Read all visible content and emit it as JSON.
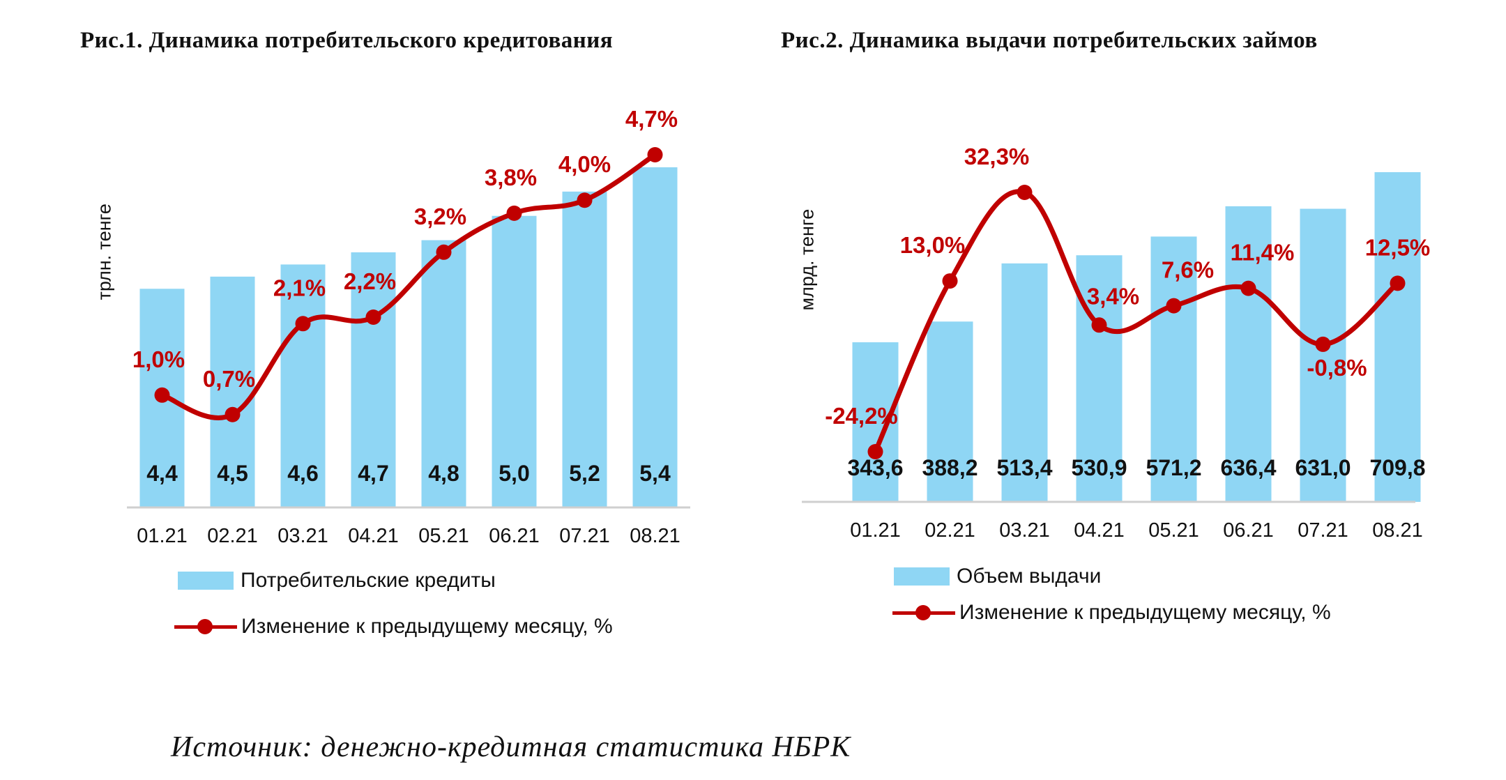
{
  "colors": {
    "bar": "#8fd6f4",
    "line": "#c00000",
    "axis": "#cfcfcf",
    "text": "#111111"
  },
  "source": "Источник: денежно-кредитная статистика НБРК",
  "chart_data": [
    {
      "type": "bar",
      "title": "Рис.1. Динамика потребительского кредитования",
      "ylabel": "трлн. тенге",
      "categories": [
        "01.21",
        "02.21",
        "03.21",
        "04.21",
        "05.21",
        "06.21",
        "07.21",
        "08.21"
      ],
      "series": [
        {
          "name": "Потребительские кредиты",
          "type": "bar",
          "values": [
            4.4,
            4.5,
            4.6,
            4.7,
            4.8,
            5.0,
            5.2,
            5.4
          ],
          "labels": [
            "4,4",
            "4,5",
            "4,6",
            "4,7",
            "4,8",
            "5,0",
            "5,2",
            "5,4"
          ]
        },
        {
          "name": "Изменение к предыдущему месяцу, %",
          "type": "line",
          "values": [
            1.0,
            0.7,
            2.1,
            2.2,
            3.2,
            3.8,
            4.0,
            4.7
          ],
          "labels": [
            "1,0%",
            "0,7%",
            "2,1%",
            "2,2%",
            "3,2%",
            "3,8%",
            "4,0%",
            "4,7%"
          ]
        }
      ],
      "grid": false,
      "legend_position": "bottom"
    },
    {
      "type": "bar",
      "title": "Рис.2. Динамика выдачи потребительских займов",
      "ylabel": "млрд. тенге",
      "categories": [
        "01.21",
        "02.21",
        "03.21",
        "04.21",
        "05.21",
        "06.21",
        "07.21",
        "08.21"
      ],
      "series": [
        {
          "name": "Объем выдачи",
          "type": "bar",
          "values": [
            343.6,
            388.2,
            513.4,
            530.9,
            571.2,
            636.4,
            631.0,
            709.8
          ],
          "labels": [
            "343,6",
            "388,2",
            "513,4",
            "530,9",
            "571,2",
            "636,4",
            "631,0",
            "709,8"
          ]
        },
        {
          "name": "Изменение к предыдущему месяцу, %",
          "type": "line",
          "values": [
            -24.2,
            13.0,
            32.3,
            3.4,
            7.6,
            11.4,
            -0.8,
            12.5
          ],
          "labels": [
            "-24,2%",
            "13,0%",
            "32,3%",
            "3,4%",
            "7,6%",
            "11,4%",
            "-0,8%",
            "12,5%"
          ]
        }
      ],
      "grid": false,
      "legend_position": "bottom"
    }
  ]
}
